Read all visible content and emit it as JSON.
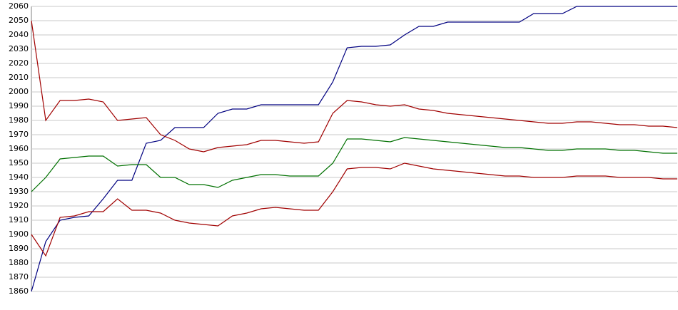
{
  "chart_data": {
    "type": "line",
    "categories": [
      null,
      null,
      null,
      null,
      null,
      null,
      null,
      null,
      null,
      null,
      null,
      null,
      null,
      null,
      null,
      null,
      null,
      null,
      null,
      null,
      null,
      null,
      null,
      null,
      null,
      null,
      null,
      null,
      null,
      null,
      null,
      null,
      null,
      null,
      null,
      null,
      null,
      null,
      null,
      null,
      null,
      null,
      null,
      null,
      null,
      null
    ],
    "series": [
      {
        "color": "#000080",
        "values": [
          1860,
          1895,
          1910,
          1912,
          1913,
          1925,
          1938,
          1938,
          1964,
          1966,
          1975,
          1975,
          1975,
          1985,
          1988,
          1988,
          1991,
          1991,
          1991,
          1991,
          1991,
          2007,
          2031,
          2032,
          2032,
          2033,
          2040,
          2046,
          2046,
          2049,
          2049,
          2049,
          2049,
          2049,
          2049,
          2055,
          2055,
          2055,
          2060,
          2060,
          2060,
          2060,
          2060,
          2060,
          2060,
          2060
        ]
      },
      {
        "color": "#a00000",
        "values": [
          2050,
          1980,
          1994,
          1994,
          1995,
          1993,
          1980,
          1981,
          1982,
          1970,
          1966,
          1960,
          1958,
          1961,
          1962,
          1963,
          1966,
          1966,
          1965,
          1964,
          1965,
          1985,
          1994,
          1993,
          1991,
          1990,
          1991,
          1988,
          1987,
          1985,
          1984,
          1983,
          1982,
          1981,
          1980,
          1979,
          1978,
          1978,
          1979,
          1979,
          1978,
          1977,
          1977,
          1976,
          1976,
          1975
        ]
      },
      {
        "color": "#007000",
        "values": [
          1930,
          1940,
          1953,
          1954,
          1955,
          1955,
          1948,
          1949,
          1949,
          1940,
          1940,
          1935,
          1935,
          1933,
          1938,
          1940,
          1942,
          1942,
          1941,
          1941,
          1941,
          1950,
          1967,
          1967,
          1966,
          1965,
          1968,
          1967,
          1966,
          1965,
          1964,
          1963,
          1962,
          1961,
          1961,
          1960,
          1959,
          1959,
          1960,
          1960,
          1960,
          1959,
          1959,
          1958,
          1957,
          1957
        ]
      },
      {
        "color": "#a00000",
        "values": [
          1900,
          1885,
          1912,
          1913,
          1916,
          1916,
          1925,
          1917,
          1917,
          1915,
          1910,
          1908,
          1907,
          1906,
          1913,
          1915,
          1918,
          1919,
          1918,
          1917,
          1917,
          1930,
          1946,
          1947,
          1947,
          1946,
          1950,
          1948,
          1946,
          1945,
          1944,
          1943,
          1942,
          1941,
          1941,
          1940,
          1940,
          1940,
          1941,
          1941,
          1941,
          1940,
          1940,
          1940,
          1939,
          1939
        ]
      }
    ],
    "ylim": [
      1860,
      2060
    ],
    "yticks": [
      1860,
      1870,
      1880,
      1890,
      1900,
      1910,
      1920,
      1930,
      1940,
      1950,
      1960,
      1970,
      1980,
      1990,
      2000,
      2010,
      2020,
      2030,
      2040,
      2050,
      2060
    ],
    "grid": true
  }
}
